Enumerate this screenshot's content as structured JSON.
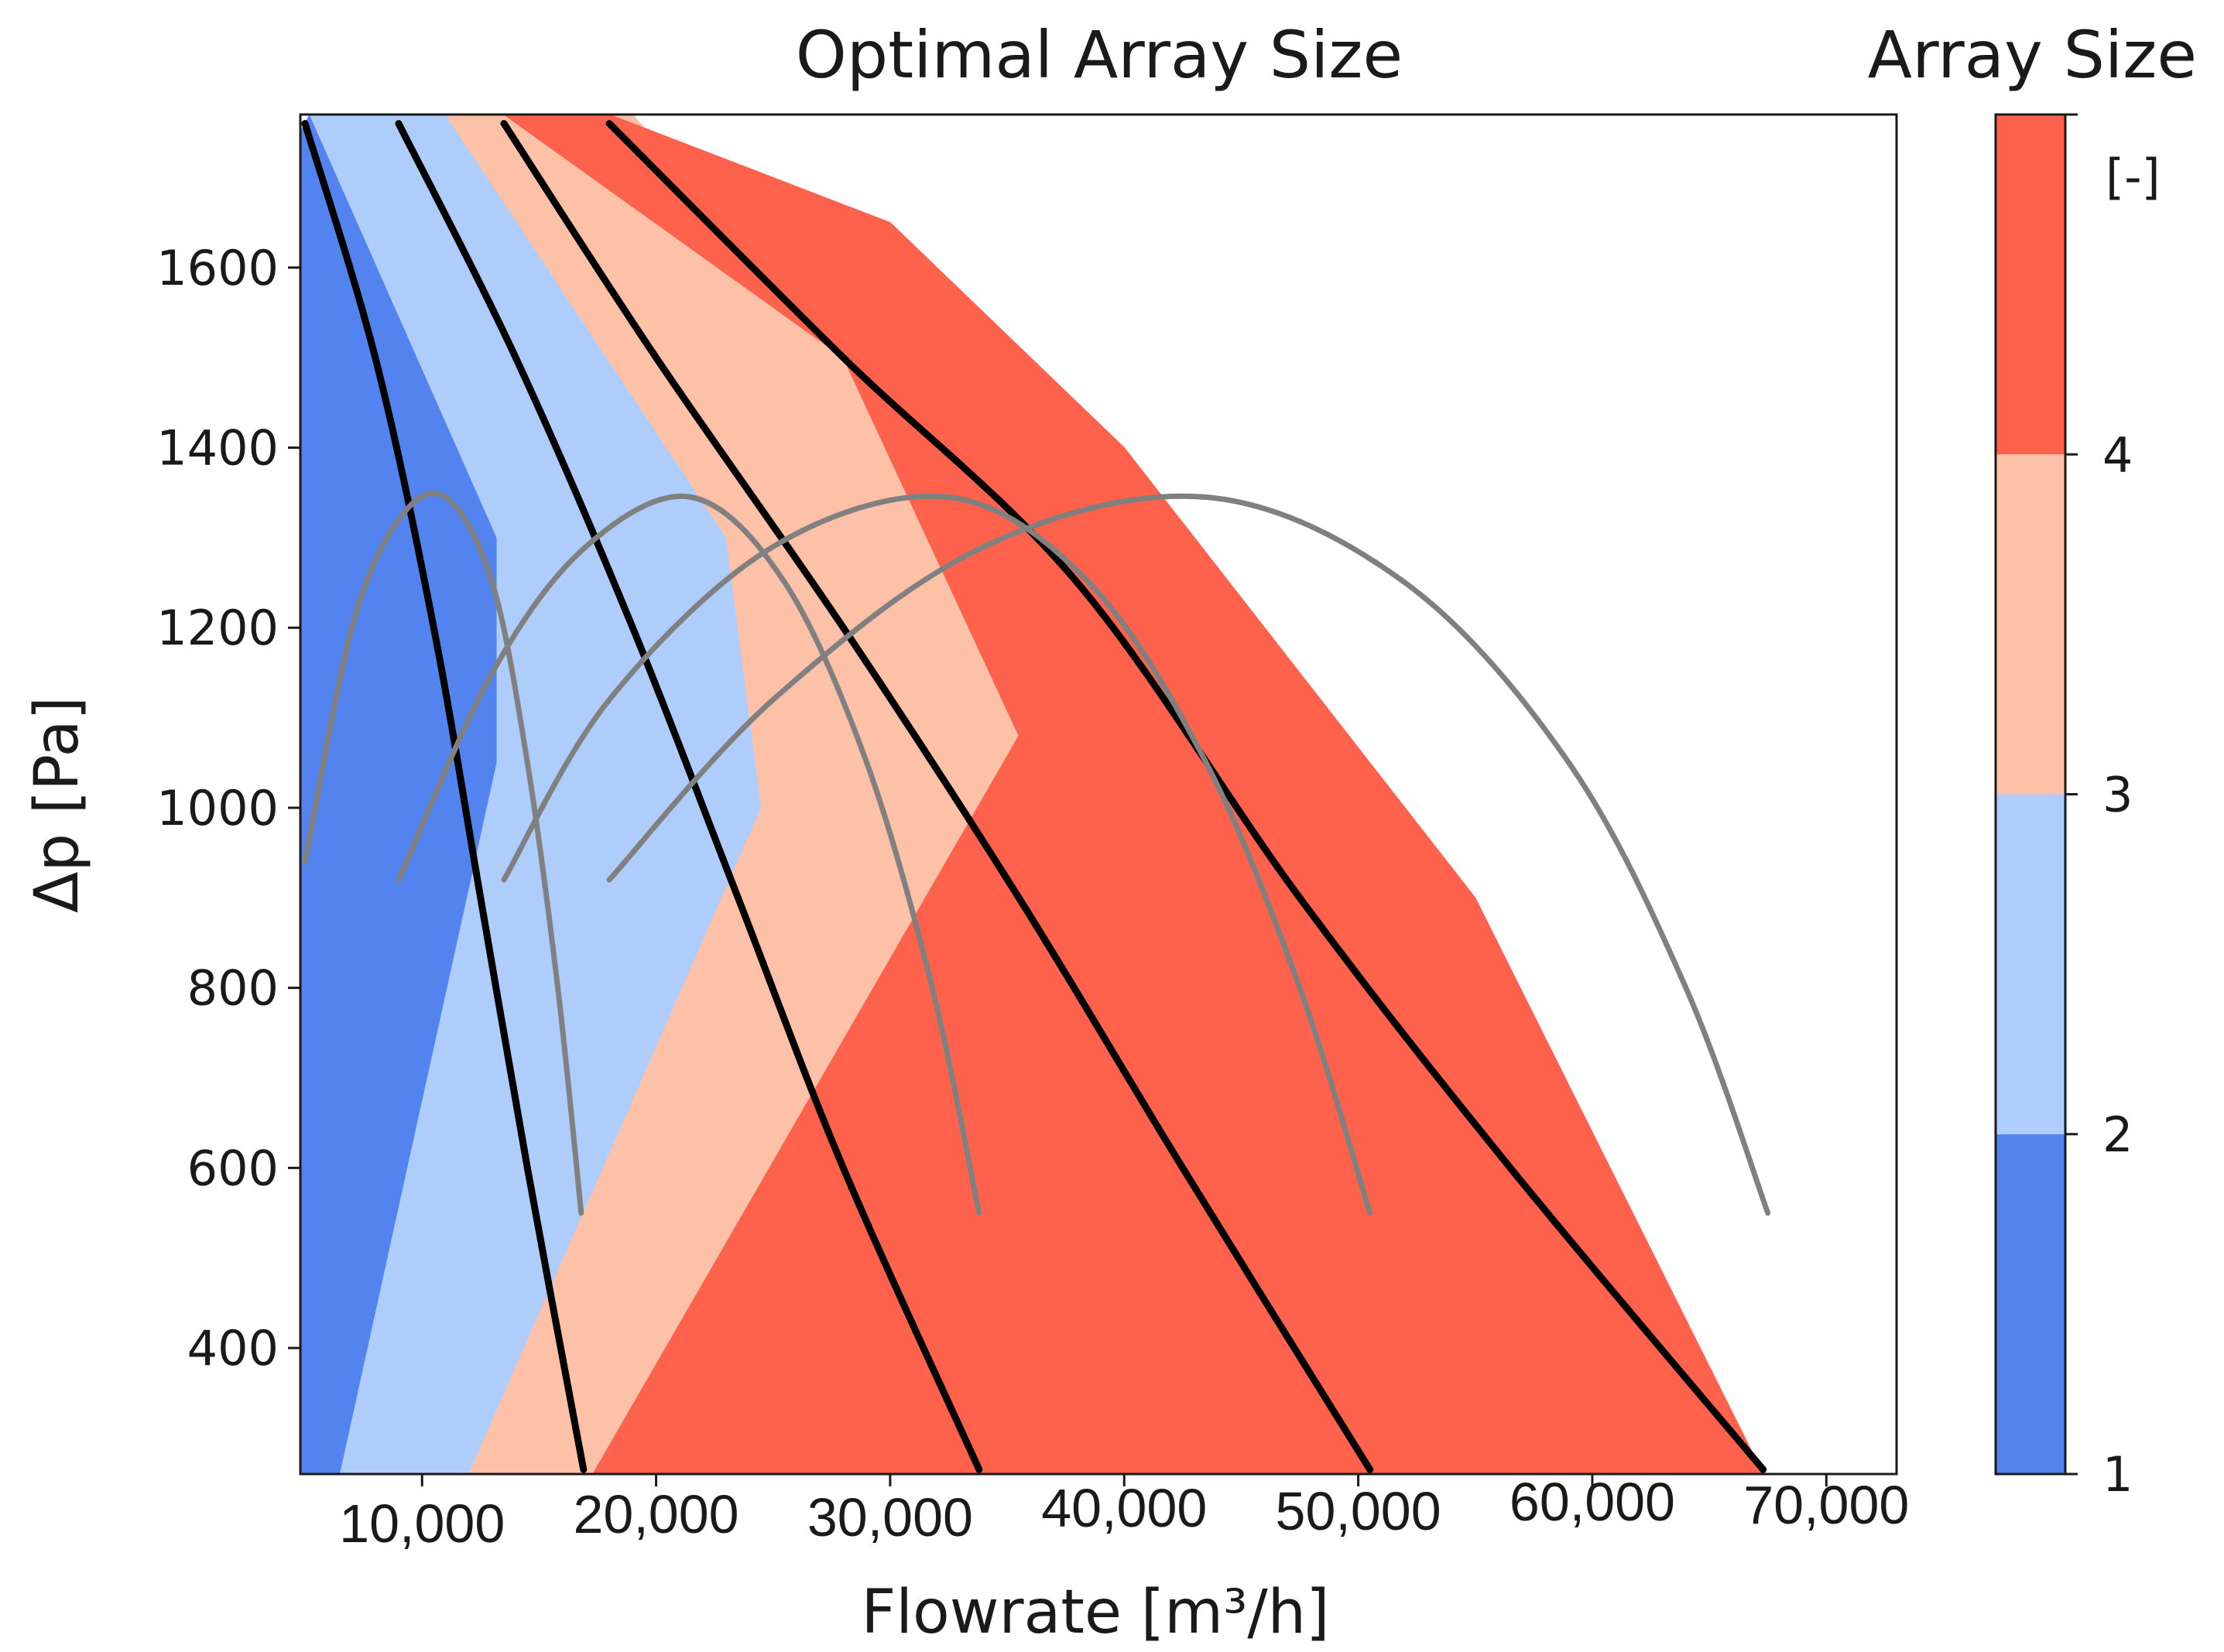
{
  "chart_data": [
    {
      "type": "heatmap",
      "title": "Optimal Array Size",
      "xlabel": "Flowrate [m³/h]",
      "ylabel": "Δp [Pa]",
      "xlim": [
        4800,
        73000
      ],
      "ylim": [
        260,
        1770
      ],
      "xticks": [
        10000,
        20000,
        30000,
        40000,
        50000,
        60000,
        70000
      ],
      "xtick_labels": [
        "10,000",
        "20,000",
        "30,000",
        "40,000",
        "50,000",
        "60,000",
        "70,000"
      ],
      "yticks": [
        400,
        600,
        800,
        1000,
        1200,
        1400,
        1600
      ],
      "ytick_labels": [
        "400",
        "600",
        "800",
        "1000",
        "1200",
        "1400",
        "1600"
      ],
      "grid": false,
      "regions": [
        {
          "array_size": 1,
          "color": "#5383ee",
          "polygon": [
            [
              4800,
              1750
            ],
            [
              4800,
              260
            ],
            [
              6500,
              260
            ],
            [
              13200,
              1050
            ],
            [
              13200,
              1300
            ],
            [
              5200,
              1770
            ]
          ]
        },
        {
          "array_size": 2,
          "color": "#aecdfa",
          "polygon": [
            [
              6500,
              260
            ],
            [
              12000,
              260
            ],
            [
              24500,
              1000
            ],
            [
              23000,
              1300
            ],
            [
              11000,
              1770
            ],
            [
              6000,
              1770
            ],
            [
              5200,
              1770
            ],
            [
              13200,
              1300
            ],
            [
              13200,
              1050
            ]
          ]
        },
        {
          "array_size": 3,
          "color": "#fdc1a8",
          "polygon": [
            [
              12000,
              260
            ],
            [
              17300,
              260
            ],
            [
              35500,
              1080
            ],
            [
              28000,
              1500
            ],
            [
              19000,
              1770
            ],
            [
              13000,
              1770
            ],
            [
              11000,
              1770
            ],
            [
              23000,
              1300
            ],
            [
              24500,
              1000
            ]
          ]
        },
        {
          "array_size": 4,
          "color": "#fe624d",
          "polygon": [
            [
              17300,
              260
            ],
            [
              67300,
              260
            ],
            [
              55000,
              900
            ],
            [
              40000,
              1400
            ],
            [
              30000,
              1650
            ],
            [
              18000,
              1770
            ],
            [
              13500,
              1770
            ],
            [
              28000,
              1500
            ],
            [
              35500,
              1080
            ]
          ]
        }
      ],
      "boundary_curves": [
        {
          "color": "#000000",
          "points": [
            [
              5000,
              1760
            ],
            [
              8000,
              1500
            ],
            [
              10500,
              1200
            ],
            [
              12500,
              900
            ],
            [
              14500,
              600
            ],
            [
              16900,
              265
            ]
          ]
        },
        {
          "color": "#000000",
          "points": [
            [
              9000,
              1760
            ],
            [
              14000,
              1500
            ],
            [
              19000,
              1200
            ],
            [
              23500,
              900
            ],
            [
              28000,
              600
            ],
            [
              33800,
              265
            ]
          ]
        },
        {
          "color": "#000000",
          "points": [
            [
              13500,
              1760
            ],
            [
              20000,
              1500
            ],
            [
              28000,
              1200
            ],
            [
              35500,
              900
            ],
            [
              42500,
              600
            ],
            [
              50500,
              265
            ]
          ]
        },
        {
          "color": "#000000",
          "points": [
            [
              18000,
              1760
            ],
            [
              28000,
              1500
            ],
            [
              38000,
              1250
            ],
            [
              47500,
              900
            ],
            [
              56500,
              600
            ],
            [
              67300,
              265
            ]
          ]
        }
      ],
      "fan_curves": [
        {
          "color": "#808080",
          "points": [
            [
              5000,
              940
            ],
            [
              7000,
              1200
            ],
            [
              9000,
              1320
            ],
            [
              11000,
              1345
            ],
            [
              13000,
              1250
            ],
            [
              14500,
              1050
            ],
            [
              15800,
              800
            ],
            [
              16800,
              550
            ]
          ]
        },
        {
          "color": "#808080",
          "points": [
            [
              9000,
              920
            ],
            [
              13000,
              1150
            ],
            [
              17000,
              1290
            ],
            [
              21500,
              1345
            ],
            [
              25500,
              1250
            ],
            [
              29000,
              1050
            ],
            [
              31800,
              800
            ],
            [
              33800,
              550
            ]
          ]
        },
        {
          "color": "#808080",
          "points": [
            [
              13500,
              920
            ],
            [
              18000,
              1120
            ],
            [
              25000,
              1290
            ],
            [
              32500,
              1345
            ],
            [
              38500,
              1250
            ],
            [
              43500,
              1050
            ],
            [
              47500,
              800
            ],
            [
              50500,
              550
            ]
          ]
        },
        {
          "color": "#808080",
          "points": [
            [
              18000,
              920
            ],
            [
              25000,
              1120
            ],
            [
              34000,
              1290
            ],
            [
              43500,
              1345
            ],
            [
              52000,
              1250
            ],
            [
              59000,
              1050
            ],
            [
              64000,
              800
            ],
            [
              67500,
              550
            ]
          ]
        }
      ]
    },
    {
      "type": "colorbar",
      "title": "Array Size",
      "unit_label": "[-]",
      "range": [
        1,
        5
      ],
      "ticks": [
        1,
        2,
        3,
        4
      ],
      "tick_labels": [
        "1",
        "2",
        "3",
        "4"
      ],
      "bands": [
        {
          "from": 1,
          "to": 2,
          "color": "#5383ee"
        },
        {
          "from": 2,
          "to": 3,
          "color": "#aecdfa"
        },
        {
          "from": 3,
          "to": 4,
          "color": "#fdc1a8"
        },
        {
          "from": 4,
          "to": 5,
          "color": "#fe624d"
        }
      ]
    }
  ]
}
